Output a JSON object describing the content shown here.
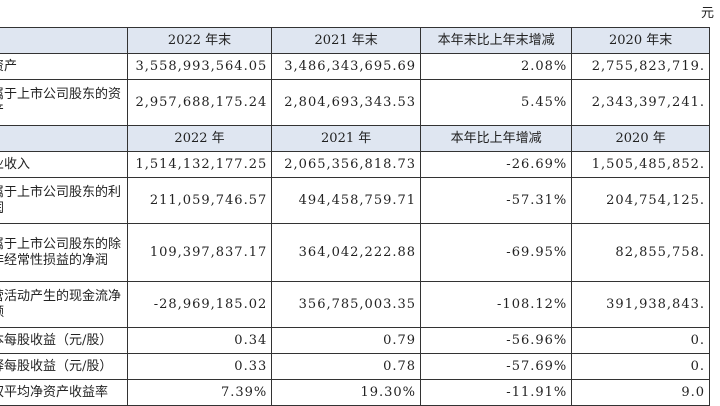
{
  "unit": "元",
  "header1": [
    "",
    "2022 年末",
    "2021 年末",
    "本年末比上年末增减",
    "2020 年末"
  ],
  "group1": [
    {
      "label": "资产",
      "values": [
        "3,558,993,564.05",
        "3,486,343,695.69",
        "2.08%",
        "2,755,823,719."
      ],
      "h": "r1"
    },
    {
      "label": "属于上市公司股东的资产",
      "values": [
        "2,957,688,175.24",
        "2,804,693,343.53",
        "5.45%",
        "2,343,397,241."
      ],
      "h": "r2"
    }
  ],
  "header2": [
    "",
    "2022 年",
    "2021 年",
    "本年比上年增减",
    "2020 年"
  ],
  "group2": [
    {
      "label": "业收入",
      "values": [
        "1,514,132,177.25",
        "2,065,356,818.73",
        "-26.69%",
        "1,505,485,852."
      ],
      "h": "r1"
    },
    {
      "label": "属于上市公司股东的利润",
      "values": [
        "211,059,746.57",
        "494,458,759.71",
        "-57.31%",
        "204,754,125."
      ],
      "h": "r2"
    },
    {
      "label": "属于上市公司股东的除非经常性损益的净润",
      "values": [
        "109,397,837.17",
        "364,042,222.88",
        "-69.95%",
        "82,855,758."
      ],
      "h": "r3"
    },
    {
      "label": "营活动产生的现金流净额",
      "values": [
        "-28,969,185.02",
        "356,785,003.35",
        "-108.12%",
        "391,938,843."
      ],
      "h": "r2"
    },
    {
      "label": "本每股收益（元/股）",
      "values": [
        "0.34",
        "0.79",
        "-56.96%",
        "0."
      ],
      "h": "r1"
    },
    {
      "label": "释每股收益（元/股）",
      "values": [
        "0.33",
        "0.78",
        "-57.69%",
        "0."
      ],
      "h": "r1"
    },
    {
      "label": "权平均净资产收益率",
      "values": [
        "7.39%",
        "19.30%",
        "-11.91%",
        "9.0"
      ],
      "h": "r1"
    }
  ]
}
